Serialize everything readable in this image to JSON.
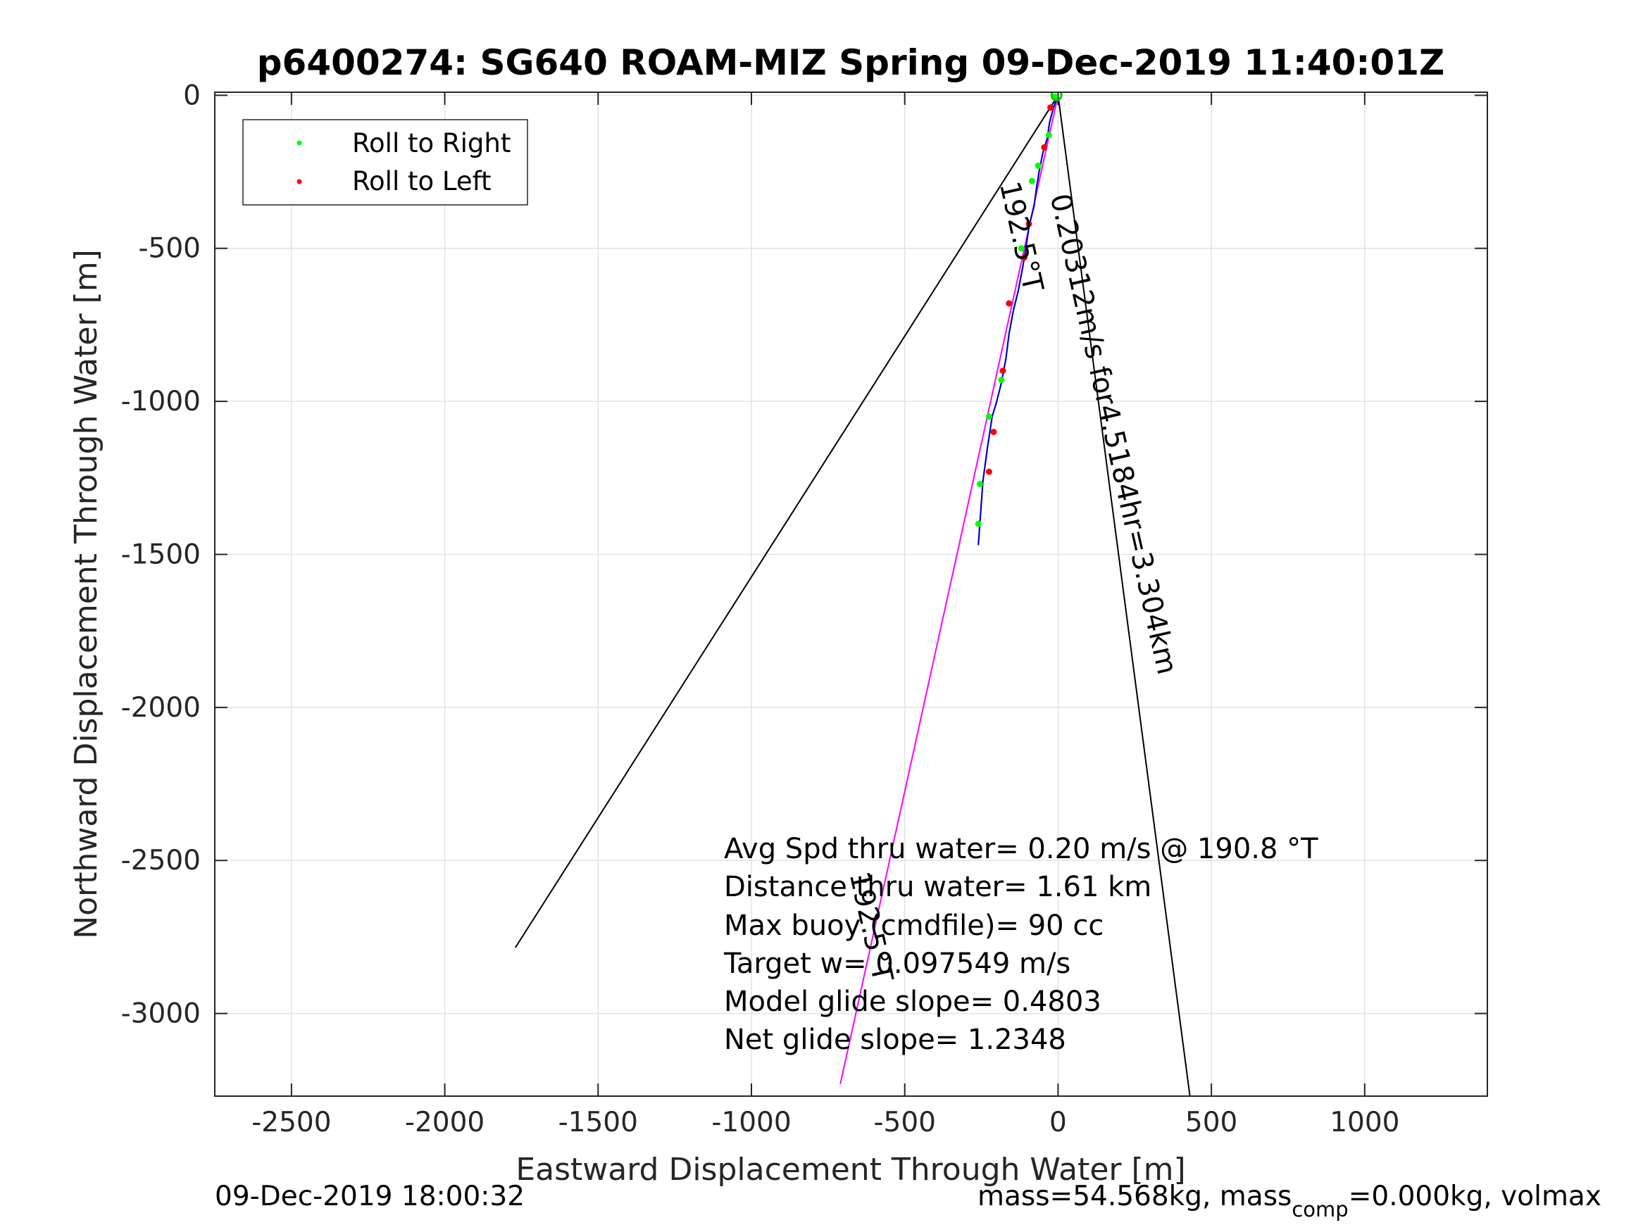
{
  "chart_data": {
    "type": "line",
    "title": "p6400274: SG640 ROAM-MIZ Spring 09-Dec-2019 11:40:01Z",
    "xlabel": "Eastward Displacement Through Water [m]",
    "ylabel": "Northward Displacement Through Water [m]",
    "xlim": [
      -2750,
      1400
    ],
    "ylim": [
      -3270,
      10
    ],
    "xticks": [
      -2500,
      -2000,
      -1500,
      -1000,
      -500,
      0,
      500,
      1000
    ],
    "yticks": [
      0,
      -500,
      -1000,
      -1500,
      -2000,
      -2500,
      -3000
    ],
    "grid": true,
    "legend": {
      "position": "top-left",
      "entries": [
        {
          "label": "Roll to Right",
          "color": "#00ff00"
        },
        {
          "label": "Roll to Left",
          "color": "#ff0000"
        }
      ]
    },
    "series": [
      {
        "name": "cone-left",
        "color": "#000000",
        "x": [
          0,
          -1770
        ],
        "y": [
          0,
          -2785
        ]
      },
      {
        "name": "cone-right",
        "color": "#000000",
        "x": [
          0,
          430
        ],
        "y": [
          0,
          -3270
        ]
      },
      {
        "name": "projected-track",
        "color": "#ff00ff",
        "x": [
          0,
          -710
        ],
        "y": [
          0,
          -3230
        ]
      },
      {
        "name": "glider-track",
        "color": "#0000cc",
        "x": [
          0,
          -15,
          -28,
          -35,
          -50,
          -62,
          -70,
          -78,
          -95,
          -105,
          -115,
          -130,
          -145,
          -160,
          -170,
          -185,
          -200,
          -215,
          -230,
          -245,
          -250,
          -255,
          -260
        ],
        "y": [
          0,
          -40,
          -90,
          -140,
          -190,
          -250,
          -300,
          -360,
          -430,
          -500,
          -560,
          -640,
          -700,
          -780,
          -860,
          -940,
          -1000,
          -1050,
          -1150,
          -1260,
          -1330,
          -1400,
          -1470
        ]
      },
      {
        "name": "roll-right-points",
        "color": "#00ff00",
        "x": [
          -10,
          -30,
          -65,
          -85,
          -120,
          -185,
          -225,
          -255,
          -260
        ],
        "y": [
          -5,
          -130,
          -230,
          -280,
          -500,
          -930,
          -1050,
          -1270,
          -1400
        ]
      },
      {
        "name": "roll-left-points",
        "color": "#ff0000",
        "x": [
          -25,
          -45,
          -95,
          -110,
          -160,
          -180,
          -210,
          -225
        ],
        "y": [
          -40,
          -170,
          -420,
          -530,
          -680,
          -900,
          -1100,
          -1230
        ]
      }
    ],
    "annotations": {
      "rotated_current": "0.20312m/s for4.5184hr=3.304km",
      "rotated_heading_top": "192.5°T",
      "rotated_heading_bottom": "192.5°T",
      "stats": [
        "Avg Spd thru water=  0.20 m/s @ 190.8 °T",
        "Distance thru water=  1.61 km",
        "Max buoy (cmdfile)= 90 cc",
        "Target w= 0.097549 m/s",
        "Model glide slope= 0.4803",
        "Net glide slope= 1.2348"
      ]
    },
    "footer_left": "09-Dec-2019 18:00:32",
    "footer_right": {
      "part1": "mass=54.568kg, mass",
      "subscript": "comp",
      "part2": "=0.000kg, volmax"
    }
  }
}
